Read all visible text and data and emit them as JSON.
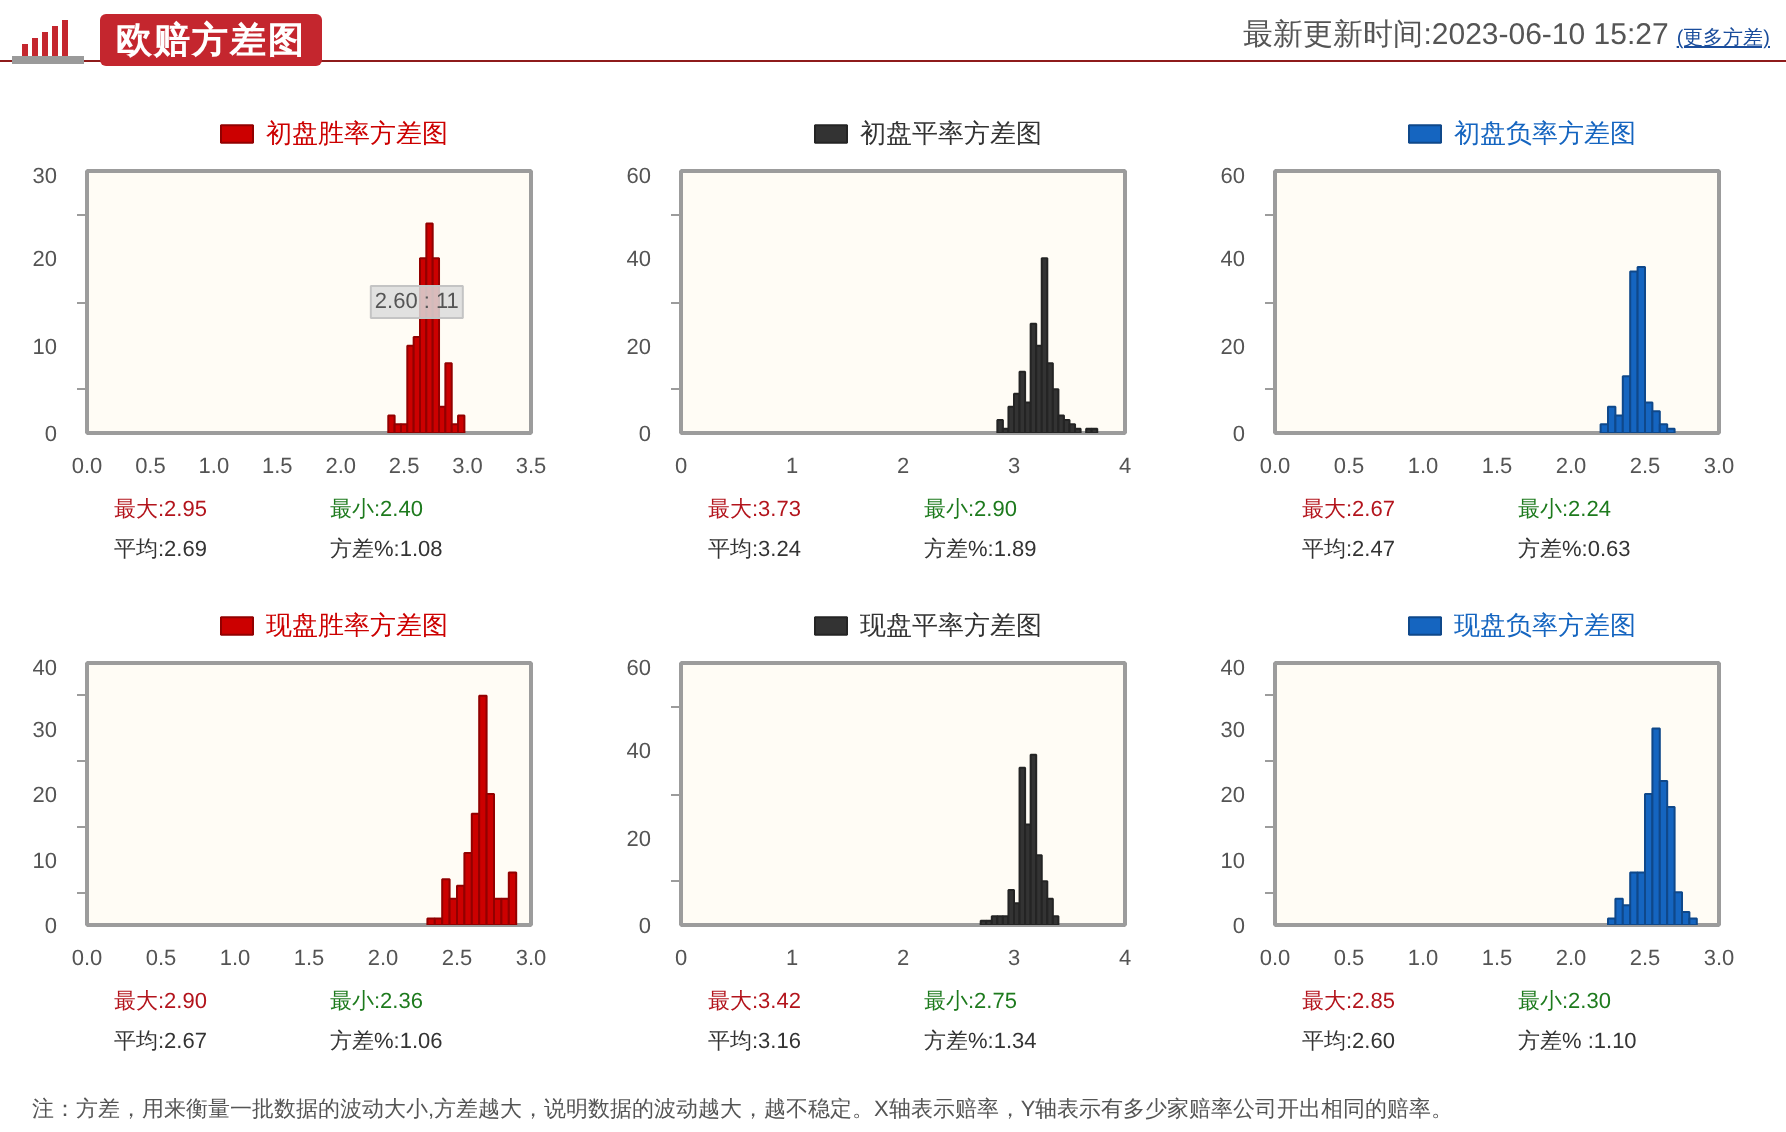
{
  "chart_data": [
    {
      "type": "other",
      "title": "欧赔方差图",
      "annotations": [
        "最新更新时间:2023-06-10 15:27",
        "(更多方差)"
      ]
    },
    {
      "type": "histogram",
      "bins": [
        2.375,
        2.425,
        2.475,
        2.525,
        2.575,
        2.625,
        2.675,
        2.725,
        2.775,
        2.825,
        2.875,
        2.925,
        2.975
      ],
      "series": [
        {
          "name": "初盘胜率方差图",
          "color": "#cc0000",
          "values": [
            2,
            1,
            1,
            10,
            11,
            20,
            24,
            20,
            3,
            8,
            1,
            2
          ]
        }
      ],
      "xlim": [
        0,
        3.5
      ],
      "ylim": [
        0,
        30
      ],
      "xticks": [
        {
          "value": 0,
          "label": "0.0"
        },
        0.5,
        {
          "value": 1,
          "label": "1.0"
        },
        1.5,
        {
          "value": 2,
          "label": "2.0"
        },
        2.5,
        {
          "value": 3,
          "label": "3.0"
        },
        3.5
      ],
      "yticks": [
        0,
        10,
        20,
        30,
        {
          "value": 5,
          "label": null
        },
        {
          "value": 15,
          "label": null
        },
        {
          "value": 25,
          "label": null
        }
      ],
      "legend": "top right",
      "annotations": [
        "最大:2.95",
        "最小:2.40",
        "平均:2.69",
        "方差%:1.08",
        {
          "text": "2.60 : 11",
          "x": 2.6,
          "y": 15
        }
      ]
    },
    {
      "type": "histogram",
      "bins": [
        2.85,
        2.9,
        2.95,
        3.0,
        3.05,
        3.1,
        3.15,
        3.2,
        3.25,
        3.3,
        3.35,
        3.4,
        3.45,
        3.5,
        3.55,
        3.6,
        3.65,
        3.7,
        3.75
      ],
      "series": [
        {
          "name": "初盘平率方差图",
          "color": "#333333",
          "values": [
            3,
            1,
            6,
            9,
            14,
            7,
            25,
            20,
            40,
            16,
            10,
            4,
            3,
            2,
            1,
            0,
            1,
            1
          ]
        }
      ],
      "xlim": [
        0,
        4
      ],
      "ylim": [
        0,
        60
      ],
      "xticks": [
        0,
        1,
        2,
        3,
        4
      ],
      "yticks": [
        0,
        20,
        40,
        60,
        {
          "value": 10,
          "label": null
        },
        {
          "value": 30,
          "label": null
        },
        {
          "value": 50,
          "label": null
        }
      ],
      "legend": "top right",
      "annotations": [
        "最大:3.73",
        "最小:2.90",
        "平均:3.24",
        "方差%:1.89"
      ]
    },
    {
      "type": "histogram",
      "bins": [
        2.2,
        2.25,
        2.3,
        2.35,
        2.4,
        2.45,
        2.5,
        2.55,
        2.6,
        2.65,
        2.7
      ],
      "series": [
        {
          "name": "初盘负率方差图",
          "color": "#1565c0",
          "values": [
            2,
            6,
            4,
            13,
            37,
            38,
            7,
            5,
            2,
            1
          ]
        }
      ],
      "xlim": [
        0,
        3
      ],
      "ylim": [
        0,
        60
      ],
      "xticks": [
        {
          "value": 0,
          "label": "0.0"
        },
        0.5,
        {
          "value": 1,
          "label": "1.0"
        },
        1.5,
        {
          "value": 2,
          "label": "2.0"
        },
        2.5,
        {
          "value": 3,
          "label": "3.0"
        }
      ],
      "yticks": [
        0,
        20,
        40,
        60,
        {
          "value": 10,
          "label": null
        },
        {
          "value": 30,
          "label": null
        },
        {
          "value": 50,
          "label": null
        }
      ],
      "legend": "top right",
      "annotations": [
        "最大:2.67",
        "最小:2.24",
        "平均:2.47",
        "方差%:0.63"
      ]
    },
    {
      "type": "histogram",
      "bins": [
        2.3,
        2.35,
        2.4,
        2.45,
        2.5,
        2.55,
        2.6,
        2.65,
        2.7,
        2.75,
        2.8,
        2.85,
        2.9
      ],
      "series": [
        {
          "name": "现盘胜率方差图",
          "color": "#cc0000",
          "values": [
            1,
            1,
            7,
            4,
            6,
            11,
            17,
            35,
            20,
            4,
            4,
            8
          ]
        }
      ],
      "xlim": [
        0,
        3
      ],
      "ylim": [
        0,
        40
      ],
      "xticks": [
        {
          "value": 0,
          "label": "0.0"
        },
        0.5,
        {
          "value": 1,
          "label": "1.0"
        },
        1.5,
        {
          "value": 2,
          "label": "2.0"
        },
        2.5,
        {
          "value": 3,
          "label": "3.0"
        }
      ],
      "yticks": [
        0,
        10,
        20,
        30,
        40,
        {
          "value": 5,
          "label": null
        },
        {
          "value": 15,
          "label": null
        },
        {
          "value": 25,
          "label": null
        },
        {
          "value": 35,
          "label": null
        }
      ],
      "legend": "top right",
      "annotations": [
        "最大:2.90",
        "最小:2.36",
        "平均:2.67",
        "方差%:1.06"
      ]
    },
    {
      "type": "histogram",
      "bins": [
        2.7,
        2.75,
        2.8,
        2.85,
        2.9,
        2.95,
        3.0,
        3.05,
        3.1,
        3.15,
        3.2,
        3.25,
        3.3,
        3.35,
        3.4
      ],
      "series": [
        {
          "name": "现盘平率方差图",
          "color": "#333333",
          "values": [
            1,
            1,
            2,
            2,
            2,
            8,
            5,
            36,
            23,
            39,
            16,
            10,
            6,
            2
          ]
        }
      ],
      "xlim": [
        0,
        4
      ],
      "ylim": [
        0,
        60
      ],
      "xticks": [
        0,
        1,
        2,
        3,
        4
      ],
      "yticks": [
        0,
        20,
        40,
        60,
        {
          "value": 10,
          "label": null
        },
        {
          "value": 30,
          "label": null
        },
        {
          "value": 50,
          "label": null
        }
      ],
      "legend": "top right",
      "annotations": [
        "最大:3.42",
        "最小:2.75",
        "平均:3.16",
        "方差%:1.34"
      ]
    },
    {
      "type": "histogram",
      "bins": [
        2.25,
        2.3,
        2.35,
        2.4,
        2.45,
        2.5,
        2.55,
        2.6,
        2.65,
        2.7,
        2.75,
        2.8,
        2.85
      ],
      "series": [
        {
          "name": "现盘负率方差图",
          "color": "#1565c0",
          "values": [
            1,
            4,
            3,
            8,
            8,
            20,
            30,
            22,
            18,
            5,
            2,
            1
          ]
        }
      ],
      "xlim": [
        0,
        3
      ],
      "ylim": [
        0,
        40
      ],
      "xticks": [
        {
          "value": 0,
          "label": "0.0"
        },
        0.5,
        {
          "value": 1,
          "label": "1.0"
        },
        1.5,
        {
          "value": 2,
          "label": "2.0"
        },
        2.5,
        {
          "value": 3,
          "label": "3.0"
        }
      ],
      "yticks": [
        0,
        10,
        20,
        30,
        40,
        {
          "value": 5,
          "label": null
        },
        {
          "value": 15,
          "label": null
        },
        {
          "value": 25,
          "label": null
        },
        {
          "value": 35,
          "label": null
        }
      ],
      "legend": "top right",
      "annotations": [
        "最大:2.85",
        "最小:2.30",
        "平均:2.60",
        "方差% :1.10"
      ]
    },
    {
      "type": "other",
      "annotations": [
        "注：方差，用来衡量一批数据的波动大小,方差越大，说明数据的波动越大，越不稳定。X轴表示赔率，Y轴表示有多少家赔率公司开出相同的赔率。"
      ]
    }
  ]
}
